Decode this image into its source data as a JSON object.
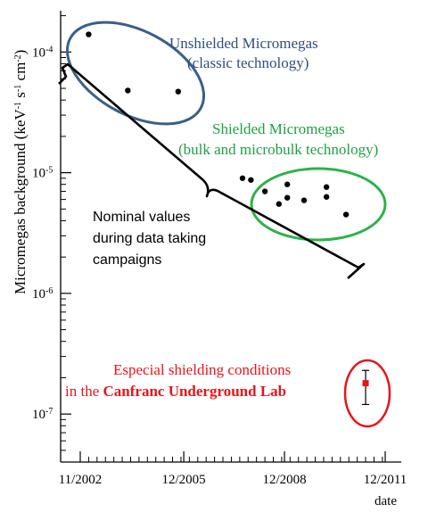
{
  "chart_data": {
    "type": "scatter",
    "title": "",
    "xlabel": "date",
    "ylabel": "Micromegas background (keV⁻¹ s⁻¹ cm⁻²)",
    "yscale": "log",
    "ylim": [
      4e-08,
      0.00022
    ],
    "xlim": [
      "2002-11",
      "2011-12"
    ],
    "x_ticks": [
      "11/2002",
      "12/2005",
      "12/2008",
      "12/2011"
    ],
    "y_ticks": [
      {
        "value": 0.0001,
        "base": "10",
        "exp": "-4"
      },
      {
        "value": 1e-05,
        "base": "10",
        "exp": "-5"
      },
      {
        "value": 1e-06,
        "base": "10",
        "exp": "-6"
      },
      {
        "value": 1e-07,
        "base": "10",
        "exp": "-7"
      }
    ],
    "grid": false,
    "series": [
      {
        "name": "Unshielded Micromegas (classic technology)",
        "color": "#000000",
        "points": [
          {
            "x": "2003-02",
            "y": 0.00014
          },
          {
            "x": "2004-04",
            "y": 4.8e-05
          },
          {
            "x": "2005-10",
            "y": 4.7e-05
          }
        ]
      },
      {
        "name": "Shielded Micromegas (bulk and microbulk technology)",
        "color": "#000000",
        "points": [
          {
            "x": "2007-09",
            "y": 9e-06
          },
          {
            "x": "2007-12",
            "y": 8.7e-06
          },
          {
            "x": "2008-05",
            "y": 7e-06
          },
          {
            "x": "2008-10",
            "y": 5.5e-06
          },
          {
            "x": "2009-01",
            "y": 8e-06
          },
          {
            "x": "2009-01",
            "y": 6.2e-06
          },
          {
            "x": "2009-07",
            "y": 5.9e-06
          },
          {
            "x": "2010-03",
            "y": 7.6e-06
          },
          {
            "x": "2010-03",
            "y": 6.3e-06
          },
          {
            "x": "2010-10",
            "y": 4.5e-06
          }
        ]
      },
      {
        "name": "Especial shielding conditions in the Canfranc Underground Lab",
        "color": "#e8141a",
        "points": [
          {
            "x": "2011-05",
            "y": 1.8e-07,
            "ylow": 1.2e-07,
            "yhigh": 2.3e-07
          }
        ]
      }
    ],
    "annotations": {
      "unshielded_line1": "Unshielded Micromegas",
      "unshielded_line2": "(classic technology)",
      "shielded_line1": "Shielded Micromegas",
      "shielded_line2": "(bulk and microbulk technology)",
      "nominal_line1": "Nominal values",
      "nominal_line2": "during data taking",
      "nominal_line3": "campaigns",
      "canfranc_line1": "Especial shielding conditions",
      "canfranc_line2_prefix": "in  the ",
      "canfranc_line2_bold": "Canfranc Underground Lab"
    },
    "colors": {
      "unshielded_ellipse": "#3a5f8a",
      "unshielded_text": "#2e4f7e",
      "shielded_ellipse": "#2db24a",
      "shielded_text": "#20a040",
      "canfranc": "#e8141a"
    }
  }
}
